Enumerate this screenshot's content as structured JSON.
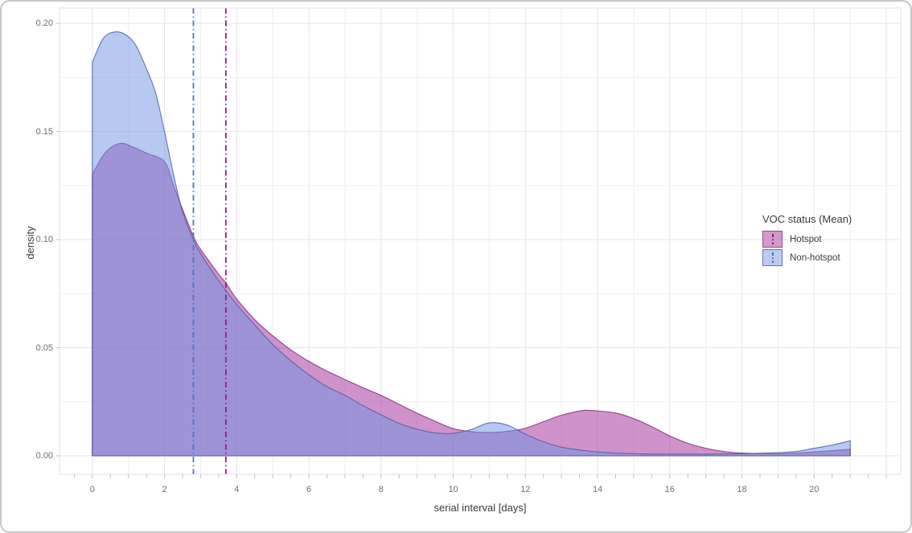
{
  "chart_data": {
    "type": "area",
    "subtype": "density",
    "title": "",
    "xlabel": "serial interval [days]",
    "ylabel": "density",
    "xlim": [
      -0.91,
      22.4
    ],
    "ylim": [
      -0.00855,
      0.2071
    ],
    "x_major_ticks": {
      "values": [
        0,
        2,
        4,
        6,
        8,
        10,
        12,
        14,
        16,
        18,
        20
      ],
      "labels": [
        "0",
        "2",
        "4",
        "6",
        "8",
        "10",
        "12",
        "14",
        "16",
        "18",
        "20"
      ]
    },
    "y_major_ticks": {
      "values": [
        0,
        0.05,
        0.1,
        0.15,
        0.2
      ],
      "labels": [
        "0.00",
        "0.05",
        "0.10",
        "0.15",
        "0.20"
      ]
    },
    "grid": {
      "x_minor_step": 1,
      "y_minor_step": 0.025,
      "x_axis_tick_step": 0.5,
      "grid_on": true
    },
    "legend": {
      "title": "VOC status (Mean)",
      "position": "inside-right",
      "entries": [
        {
          "label": "Hotspot",
          "key_fill": "#D598CD",
          "key_border": "#8E4C8A",
          "key_line": "#8B1580"
        },
        {
          "label": "Non-hotspot",
          "key_fill": "#BCCBF0",
          "key_border": "#6272BE",
          "key_line": "#4169C8"
        }
      ]
    },
    "series": [
      {
        "name": "Hotspot",
        "mean": 3.7,
        "fill": "#A12597",
        "fill_opacity": 0.5,
        "stroke": "#7E2173",
        "mean_line_color": "#9C1396",
        "x": [
          0,
          0.3,
          0.6,
          0.85,
          1.1,
          1.5,
          2,
          2.25,
          2.5,
          2.8,
          3,
          3.5,
          3.7,
          4,
          4.5,
          5,
          5.5,
          6,
          6.5,
          7,
          7.5,
          8,
          8.5,
          9,
          9.5,
          10,
          10.5,
          11,
          11.5,
          12,
          12.5,
          13,
          13.5,
          13.8,
          14.5,
          15,
          15.5,
          16,
          16.5,
          17,
          17.5,
          18,
          19,
          20,
          21
        ],
        "y": [
          0.13,
          0.139,
          0.1435,
          0.1445,
          0.143,
          0.14,
          0.136,
          0.125,
          0.114,
          0.1015,
          0.0955,
          0.084,
          0.08,
          0.0725,
          0.063,
          0.0555,
          0.049,
          0.0437,
          0.0392,
          0.0353,
          0.0315,
          0.028,
          0.0238,
          0.0197,
          0.016,
          0.0126,
          0.0112,
          0.0108,
          0.0113,
          0.0128,
          0.0158,
          0.0188,
          0.0207,
          0.021,
          0.0198,
          0.0172,
          0.0135,
          0.0092,
          0.0058,
          0.0035,
          0.002,
          0.0013,
          0.001,
          0.0018,
          0.003
        ]
      },
      {
        "name": "Non-hotspot",
        "mean": 2.8,
        "fill": "#6D93E3",
        "fill_opacity": 0.5,
        "stroke": "#44599C",
        "mean_line_color": "#4A74D0",
        "x": [
          0,
          0.3,
          0.6,
          0.9,
          1.2,
          1.5,
          1.75,
          2,
          2.25,
          2.5,
          2.8,
          3,
          3.5,
          4,
          4.5,
          5,
          5.5,
          6,
          6.5,
          7,
          7.5,
          8,
          8.5,
          9,
          9.5,
          10,
          10.5,
          11,
          11.5,
          12,
          12.5,
          13,
          13.5,
          14,
          15,
          16,
          17,
          18,
          19,
          19.5,
          20,
          20.5,
          21
        ],
        "y": [
          0.182,
          0.193,
          0.196,
          0.195,
          0.19,
          0.179,
          0.168,
          0.15,
          0.13,
          0.113,
          0.1,
          0.0935,
          0.081,
          0.07,
          0.0605,
          0.0515,
          0.044,
          0.0375,
          0.032,
          0.028,
          0.0232,
          0.019,
          0.015,
          0.0123,
          0.0106,
          0.0104,
          0.0122,
          0.0153,
          0.0142,
          0.01,
          0.0065,
          0.004,
          0.0027,
          0.0018,
          0.001,
          0.0008,
          0.0008,
          0.001,
          0.0015,
          0.002,
          0.0035,
          0.005,
          0.007
        ]
      }
    ]
  }
}
